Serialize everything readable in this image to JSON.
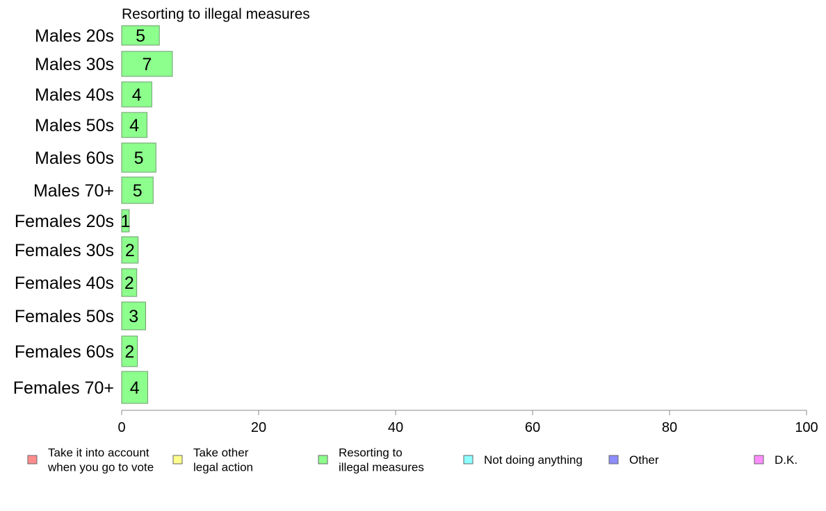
{
  "chart_data": {
    "type": "bar",
    "orientation": "horizontal",
    "title": "Resorting to illegal measures",
    "categories": [
      "Males 20s",
      "Males 30s",
      "Males 40s",
      "Males 50s",
      "Males 60s",
      "Males 70+",
      "Females 20s",
      "Females 30s",
      "Females 40s",
      "Females 50s",
      "Females 60s",
      "Females 70+"
    ],
    "series": [
      {
        "name": "Resorting to illegal measures",
        "values": [
          5.5,
          7.4,
          4.4,
          3.7,
          5.0,
          4.6,
          1.1,
          2.4,
          2.2,
          3.5,
          2.3,
          3.8
        ],
        "labels": [
          "5",
          "7",
          "4",
          "4",
          "5",
          "5",
          "1",
          "2",
          "2",
          "3",
          "2",
          "4"
        ],
        "color": "#8dff8d"
      }
    ],
    "xlim": [
      0,
      100
    ],
    "xticks": [
      "0",
      "20",
      "40",
      "60",
      "80",
      "100"
    ],
    "xtick_values": [
      0,
      20,
      40,
      60,
      80,
      100
    ],
    "grid": false,
    "legend_position": "bottom",
    "legend": [
      {
        "label_lines": [
          "Take it into account",
          "when you go to vote"
        ],
        "color": "#ff8d8d"
      },
      {
        "label_lines": [
          "Take other",
          "legal action"
        ],
        "color": "#ffff8d"
      },
      {
        "label_lines": [
          "Resorting to",
          "illegal measures"
        ],
        "color": "#8dff8d"
      },
      {
        "label_lines": [
          "Not doing anything"
        ],
        "color": "#8dffff"
      },
      {
        "label_lines": [
          "Other"
        ],
        "color": "#8d8dff"
      },
      {
        "label_lines": [
          "D.K."
        ],
        "color": "#ff8dff"
      }
    ],
    "bar_border_color": "#6e9a6e",
    "axis_color": "#888888"
  }
}
